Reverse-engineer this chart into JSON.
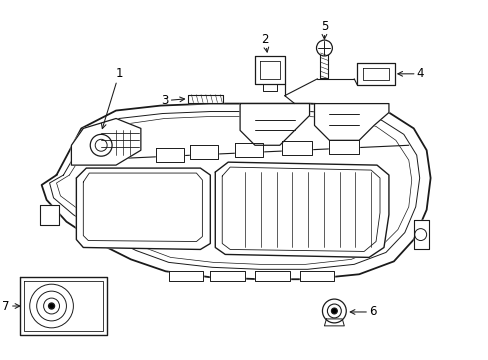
{
  "background_color": "#ffffff",
  "line_color": "#1a1a1a",
  "label_color": "#000000",
  "figsize": [
    4.89,
    3.6
  ],
  "dpi": 100,
  "label_fontsize": 8.5,
  "line_width": 0.9
}
